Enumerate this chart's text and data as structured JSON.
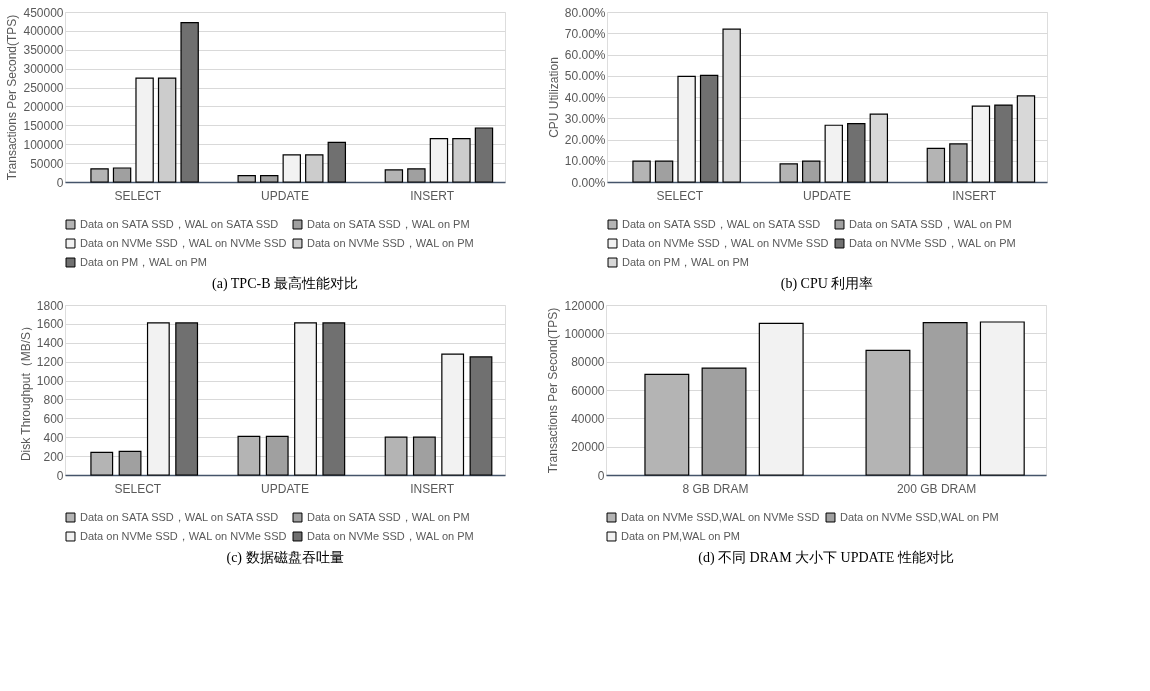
{
  "chart_data": [
    {
      "type": "bar",
      "title": "(a) TPC-B 最高性能对比",
      "ylabel": "Transactions Per Second(TPS)",
      "categories": [
        "SELECT",
        "UPDATE",
        "INSERT"
      ],
      "ylim": [
        0,
        450000
      ],
      "yticks": [
        0,
        50000,
        100000,
        150000,
        200000,
        250000,
        300000,
        350000,
        400000,
        450000
      ],
      "grid": "y",
      "legend": "bottom",
      "series": [
        {
          "name": "Data on SATA SSD，WAL on SATA SSD",
          "color": "#b4b4b4",
          "values": [
            35000,
            17000,
            32000
          ]
        },
        {
          "name": "Data on SATA SSD，WAL on PM",
          "color": "#a0a0a0",
          "values": [
            37000,
            17000,
            35000
          ]
        },
        {
          "name": "Data on NVMe SSD，WAL on NVMe SSD",
          "color": "#f2f2f2",
          "values": [
            275000,
            72000,
            115000
          ]
        },
        {
          "name": "Data on NVMe SSD，WAL on PM",
          "color": "#cccccc",
          "values": [
            275000,
            72000,
            115000
          ]
        },
        {
          "name": "Data on PM，WAL on PM",
          "color": "#707070",
          "values": [
            422000,
            105000,
            143000
          ]
        }
      ]
    },
    {
      "type": "bar",
      "title": "(b) CPU 利用率",
      "ylabel": "CPU Utilization",
      "categories": [
        "SELECT",
        "UPDATE",
        "INSERT"
      ],
      "ylim": [
        0,
        80
      ],
      "yticks": [
        {
          "value": 0,
          "label": "0.00%"
        },
        {
          "value": 10,
          "label": "10.00%"
        },
        {
          "value": 20,
          "label": "20.00%"
        },
        {
          "value": 30,
          "label": "30.00%"
        },
        {
          "value": 40,
          "label": "40.00%"
        },
        {
          "value": 50,
          "label": "50.00%"
        },
        {
          "value": 60,
          "label": "60.00%"
        },
        {
          "value": 70,
          "label": "70.00%"
        },
        {
          "value": 80,
          "label": "80.00%"
        }
      ],
      "grid": "y",
      "legend": "bottom",
      "series": [
        {
          "name": "Data on SATA SSD，WAL on SATA SSD",
          "color": "#b4b4b4",
          "values": [
            9.8,
            8.5,
            15.8
          ]
        },
        {
          "name": "Data on SATA SSD，WAL on PM",
          "color": "#a0a0a0",
          "values": [
            9.8,
            9.8,
            17.9
          ]
        },
        {
          "name": "Data on NVMe SSD，WAL on NVMe SSD",
          "color": "#f2f2f2",
          "values": [
            49.7,
            26.7,
            35.7
          ]
        },
        {
          "name": "Data on NVMe SSD，WAL on PM",
          "color": "#707070",
          "values": [
            50.2,
            27.5,
            36.2
          ]
        },
        {
          "name": "Data on PM，WAL on PM",
          "color": "#d8d8d8",
          "values": [
            71.9,
            31.9,
            40.5
          ]
        }
      ]
    },
    {
      "type": "bar",
      "title": "(c)  数据磁盘吞吐量",
      "ylabel": "Disk Throughput（MB/S）",
      "categories": [
        "SELECT",
        "UPDATE",
        "INSERT"
      ],
      "ylim": [
        0,
        1800
      ],
      "yticks": [
        0,
        200,
        400,
        600,
        800,
        1000,
        1200,
        1400,
        1600,
        1800
      ],
      "grid": "y",
      "legend": "bottom",
      "series": [
        {
          "name": "Data on SATA SSD，WAL on SATA SSD",
          "color": "#b4b4b4",
          "values": [
            240,
            410,
            400
          ]
        },
        {
          "name": "Data on SATA SSD，WAL on PM",
          "color": "#a0a0a0",
          "values": [
            250,
            410,
            400
          ]
        },
        {
          "name": "Data on NVMe SSD，WAL on NVMe SSD",
          "color": "#f2f2f2",
          "values": [
            1610,
            1610,
            1280
          ]
        },
        {
          "name": "Data on NVMe SSD，WAL on PM",
          "color": "#707070",
          "values": [
            1610,
            1610,
            1250
          ]
        }
      ]
    },
    {
      "type": "bar",
      "title": "(d)  不同 DRAM 大小下 UPDATE 性能对比",
      "ylabel": "Transactions Per Second(TPS)",
      "categories": [
        "8 GB DRAM",
        "200 GB DRAM"
      ],
      "ylim": [
        0,
        120000
      ],
      "yticks": [
        0,
        20000,
        40000,
        60000,
        80000,
        100000,
        120000
      ],
      "grid": "y",
      "legend": "bottom",
      "series": [
        {
          "name": "Data on NVMe SSD,WAL on NVMe SSD",
          "color": "#b4b4b4",
          "values": [
            71000,
            88000
          ]
        },
        {
          "name": "Data on NVMe SSD,WAL on PM",
          "color": "#a0a0a0",
          "values": [
            75500,
            107500
          ]
        },
        {
          "name": "Data on PM,WAL on PM",
          "color": "#f2f2f2",
          "values": [
            107000,
            108000
          ]
        }
      ]
    }
  ]
}
